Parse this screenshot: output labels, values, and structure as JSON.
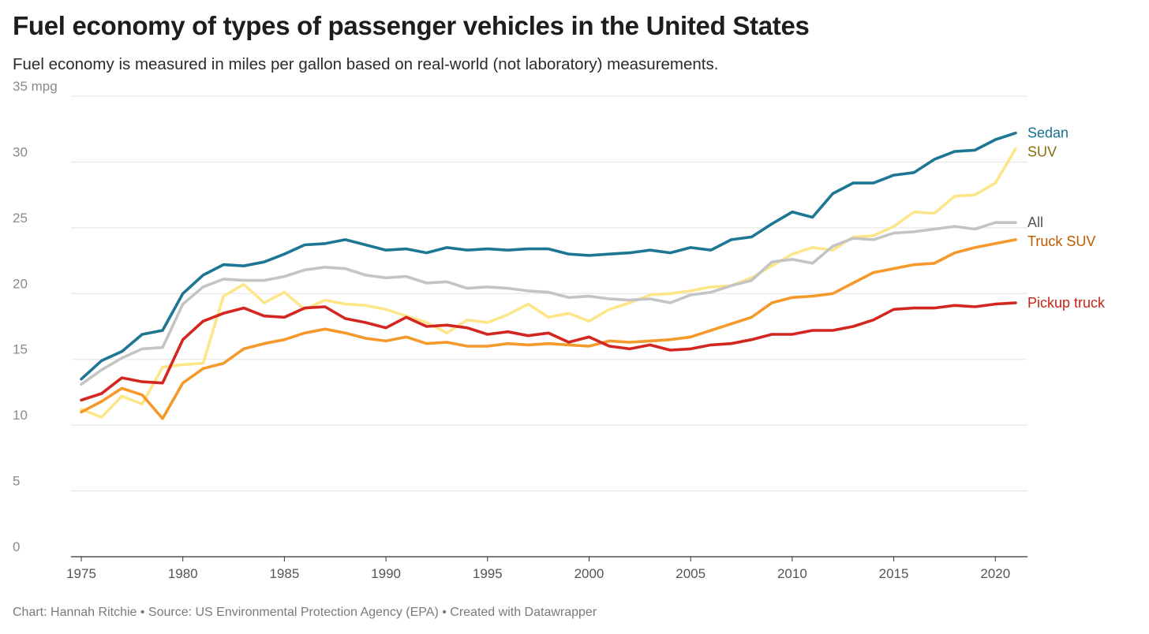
{
  "header": {
    "title": "Fuel economy of types of passenger vehicles in the United States",
    "subtitle": "Fuel economy is measured in miles per gallon based on real-world (not laboratory) measurements."
  },
  "footer": {
    "text": "Chart: Hannah Ritchie • Source: US Environmental Protection Agency (EPA) • Created with Datawrapper"
  },
  "chart_data": {
    "type": "line",
    "title": "Fuel economy of types of passenger vehicles in the United States",
    "subtitle": "Fuel economy is measured in miles per gallon based on real-world (not laboratory) measurements.",
    "xlabel": "",
    "ylabel": "",
    "xlim": [
      1975,
      2021
    ],
    "ylim": [
      0,
      35
    ],
    "y_ticks": [
      0,
      5,
      10,
      15,
      20,
      25,
      30,
      35
    ],
    "y_tick_labels": [
      "0",
      "5",
      "10",
      "15",
      "20",
      "25",
      "30",
      "35 mpg"
    ],
    "x_ticks": [
      1975,
      1980,
      1985,
      1990,
      1995,
      2000,
      2005,
      2010,
      2015,
      2020
    ],
    "x_tick_labels": [
      "1975",
      "1980",
      "1985",
      "1990",
      "1995",
      "2000",
      "2005",
      "2010",
      "2015",
      "2020"
    ],
    "grid": "horizontal",
    "legend": "direct labels at right end of lines",
    "x": [
      1975,
      1976,
      1977,
      1978,
      1979,
      1980,
      1981,
      1982,
      1983,
      1984,
      1985,
      1986,
      1987,
      1988,
      1989,
      1990,
      1991,
      1992,
      1993,
      1994,
      1995,
      1996,
      1997,
      1998,
      1999,
      2000,
      2001,
      2002,
      2003,
      2004,
      2005,
      2006,
      2007,
      2008,
      2009,
      2010,
      2011,
      2012,
      2013,
      2014,
      2015,
      2016,
      2017,
      2018,
      2019,
      2020,
      2021
    ],
    "series": [
      {
        "name": "SUV",
        "color": "#fde68a",
        "label_color": "#8a6d0b",
        "values": [
          11.2,
          10.6,
          12.2,
          11.6,
          14.4,
          14.6,
          14.7,
          19.8,
          20.7,
          19.3,
          20.1,
          18.8,
          19.5,
          19.2,
          19.1,
          18.8,
          18.3,
          17.8,
          17.0,
          18.0,
          17.8,
          18.4,
          19.2,
          18.2,
          18.5,
          17.9,
          18.8,
          19.3,
          19.9,
          20.0,
          20.2,
          20.5,
          20.6,
          21.2,
          22.1,
          23.0,
          23.5,
          23.3,
          24.3,
          24.4,
          25.1,
          26.2,
          26.1,
          27.4,
          27.5,
          28.4,
          31.0
        ]
      },
      {
        "name": "All",
        "color": "#c4c4c4",
        "label_color": "#555555",
        "values": [
          13.1,
          14.2,
          15.1,
          15.8,
          15.9,
          19.2,
          20.5,
          21.1,
          21.0,
          21.0,
          21.3,
          21.8,
          22.0,
          21.9,
          21.4,
          21.2,
          21.3,
          20.8,
          20.9,
          20.4,
          20.5,
          20.4,
          20.2,
          20.1,
          19.7,
          19.8,
          19.6,
          19.5,
          19.6,
          19.3,
          19.9,
          20.1,
          20.6,
          21.0,
          22.4,
          22.6,
          22.3,
          23.6,
          24.2,
          24.1,
          24.6,
          24.7,
          24.9,
          25.1,
          24.9,
          25.4,
          25.4
        ]
      },
      {
        "name": "Truck SUV",
        "color": "#f4992a",
        "label_color": "#c05a00",
        "values": [
          11.0,
          11.8,
          12.8,
          12.3,
          10.5,
          13.2,
          14.3,
          14.7,
          15.8,
          16.2,
          16.5,
          17.0,
          17.3,
          17.0,
          16.6,
          16.4,
          16.7,
          16.2,
          16.3,
          16.0,
          16.0,
          16.2,
          16.1,
          16.2,
          16.1,
          16.0,
          16.4,
          16.3,
          16.4,
          16.5,
          16.7,
          17.2,
          17.7,
          18.2,
          19.3,
          19.7,
          19.8,
          20.0,
          20.8,
          21.6,
          21.9,
          22.2,
          22.3,
          23.1,
          23.5,
          23.8,
          24.1
        ]
      },
      {
        "name": "Pickup truck",
        "color": "#d32620",
        "label_color": "#c62418",
        "values": [
          11.9,
          12.4,
          13.6,
          13.3,
          13.2,
          16.5,
          17.9,
          18.5,
          18.9,
          18.3,
          18.2,
          18.9,
          19.0,
          18.1,
          17.8,
          17.4,
          18.2,
          17.5,
          17.6,
          17.4,
          16.9,
          17.1,
          16.8,
          17.0,
          16.3,
          16.7,
          16.0,
          15.8,
          16.1,
          15.7,
          15.8,
          16.1,
          16.2,
          16.5,
          16.9,
          16.9,
          17.2,
          17.2,
          17.5,
          18.0,
          18.8,
          18.9,
          18.9,
          19.1,
          19.0,
          19.2,
          19.3
        ]
      },
      {
        "name": "Sedan",
        "color": "#1c7694",
        "label_color": "#17708f",
        "values": [
          13.5,
          14.9,
          15.6,
          16.9,
          17.2,
          20.0,
          21.4,
          22.2,
          22.1,
          22.4,
          23.0,
          23.7,
          23.8,
          24.1,
          23.7,
          23.3,
          23.4,
          23.1,
          23.5,
          23.3,
          23.4,
          23.3,
          23.4,
          23.4,
          23.0,
          22.9,
          23.0,
          23.1,
          23.3,
          23.1,
          23.5,
          23.3,
          24.1,
          24.3,
          25.3,
          26.2,
          25.8,
          27.6,
          28.4,
          28.4,
          29.0,
          29.2,
          30.2,
          30.8,
          30.9,
          31.7,
          32.2
        ]
      }
    ]
  }
}
